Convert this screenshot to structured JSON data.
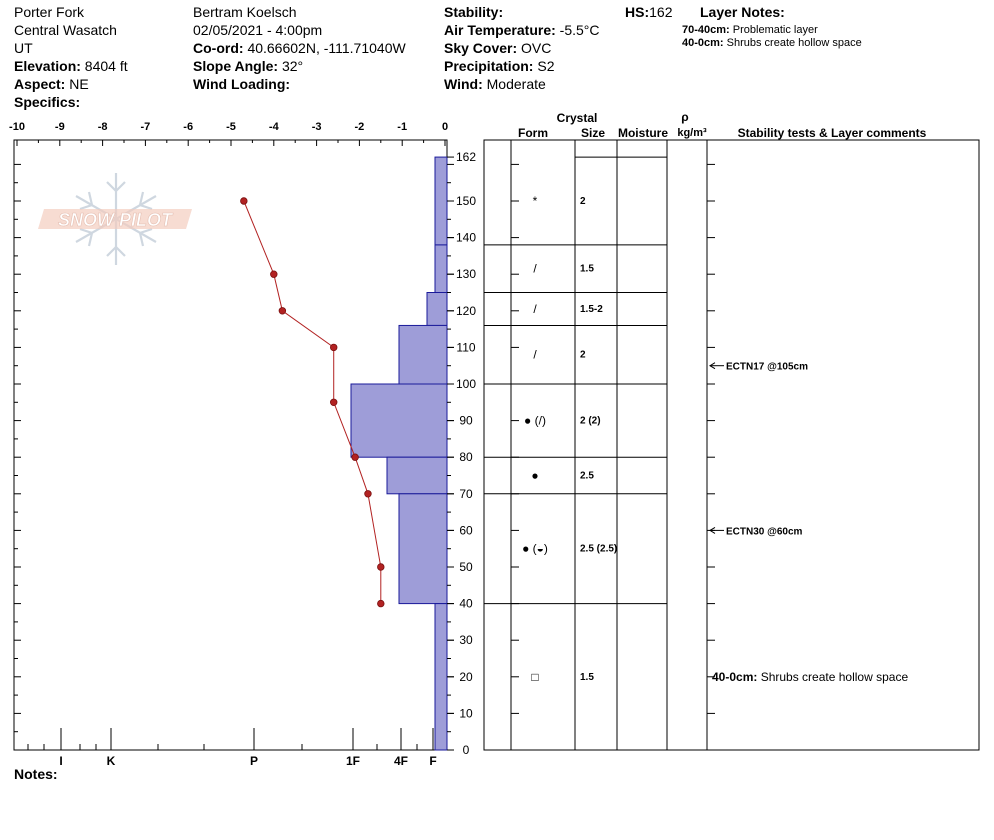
{
  "header": {
    "location": "Porter Fork",
    "range": "Central Wasatch",
    "state": "UT",
    "elevation_label": "Elevation:",
    "elevation_value": "8404 ft",
    "aspect_label": "Aspect:",
    "aspect_value": "NE",
    "specifics_label": "Specifics:",
    "observer": "Bertram Koelsch",
    "datetime": "02/05/2021 - 4:00pm",
    "coord_label": "Co-ord:",
    "coord_value": "40.66602N, -111.71040W",
    "slope_label": "Slope Angle:",
    "slope_value": "32°",
    "wind_loading_label": "Wind Loading:",
    "stability_label": "Stability:",
    "air_temp_label": "Air Temperature:",
    "air_temp_value": "-5.5°C",
    "sky_label": "Sky Cover:",
    "sky_value": "OVC",
    "precip_label": "Precipitation:",
    "precip_value": "S2",
    "wind_label": "Wind:",
    "wind_value": "Moderate",
    "hs_label": "HS:",
    "hs_value": "162",
    "layer_notes_label": "Layer Notes:",
    "layer_notes": [
      {
        "range": "70-40cm:",
        "text": "Problematic layer"
      },
      {
        "range": "40-0cm:",
        "text": "Shrubs create hollow space"
      }
    ]
  },
  "notes_label": "Notes:",
  "logo_text": "SNOW PILOT",
  "columns": {
    "crystal": "Crystal",
    "form": "Form",
    "size": "Size",
    "moisture": "Moisture",
    "rho": "ρ",
    "density_unit": "kg/m³",
    "stability": "Stability tests & Layer comments"
  },
  "chart_data": {
    "type": "snow-profile",
    "hs": 162,
    "depth_ticks": [
      0,
      10,
      20,
      30,
      40,
      50,
      60,
      70,
      80,
      90,
      100,
      110,
      120,
      130,
      140,
      150,
      162
    ],
    "temp_ticks": [
      "-10",
      "-9",
      "-8",
      "-7",
      "-6",
      "-5",
      "-4",
      "-3",
      "-2",
      "-1",
      "0"
    ],
    "temp_range": [
      -10,
      0
    ],
    "hardness_labels": [
      {
        "label": "I",
        "value": 1
      },
      {
        "label": "K",
        "value": 2
      },
      {
        "label": "P",
        "value": 3
      },
      {
        "label": "1F",
        "value": 4
      },
      {
        "label": "4F",
        "value": 4.5
      },
      {
        "label": "F",
        "value": 5
      }
    ],
    "temperature_profile": [
      {
        "depth": 150,
        "temp": -4.7
      },
      {
        "depth": 130,
        "temp": -4.0
      },
      {
        "depth": 120,
        "temp": -3.8
      },
      {
        "depth": 110,
        "temp": -2.6
      },
      {
        "depth": 95,
        "temp": -2.6
      },
      {
        "depth": 80,
        "temp": -2.1
      },
      {
        "depth": 70,
        "temp": -1.8
      },
      {
        "depth": 50,
        "temp": -1.5
      },
      {
        "depth": 40,
        "temp": -1.5
      }
    ],
    "layers": [
      {
        "top": 162,
        "bottom": 138,
        "hardness": "F",
        "form": "*",
        "size": "2"
      },
      {
        "top": 138,
        "bottom": 125,
        "hardness": "F",
        "form": "/",
        "size": "1.5"
      },
      {
        "top": 125,
        "bottom": 116,
        "hardness": "F+",
        "form": "/",
        "size": "1.5-2"
      },
      {
        "top": 116,
        "bottom": 100,
        "hardness": "4F",
        "form": "/",
        "size": "2"
      },
      {
        "top": 100,
        "bottom": 80,
        "hardness": "1F",
        "form": "● (/)",
        "size": "2 (2)"
      },
      {
        "top": 80,
        "bottom": 70,
        "hardness": "4F+",
        "form": "●",
        "size": "2.5"
      },
      {
        "top": 70,
        "bottom": 40,
        "hardness": "4F",
        "form": "● (◒)",
        "size": "2.5 (2.5)"
      },
      {
        "top": 40,
        "bottom": 0,
        "hardness": "F",
        "form": "□",
        "size": "1.5"
      }
    ],
    "stability_tests": [
      {
        "depth": 105,
        "text": "ECTN17 @105cm"
      },
      {
        "depth": 60,
        "text": "ECTN30 @60cm"
      }
    ],
    "layer_comments": [
      {
        "depth": 20,
        "range": "40-0cm:",
        "text": "Shrubs create hollow space"
      }
    ]
  }
}
